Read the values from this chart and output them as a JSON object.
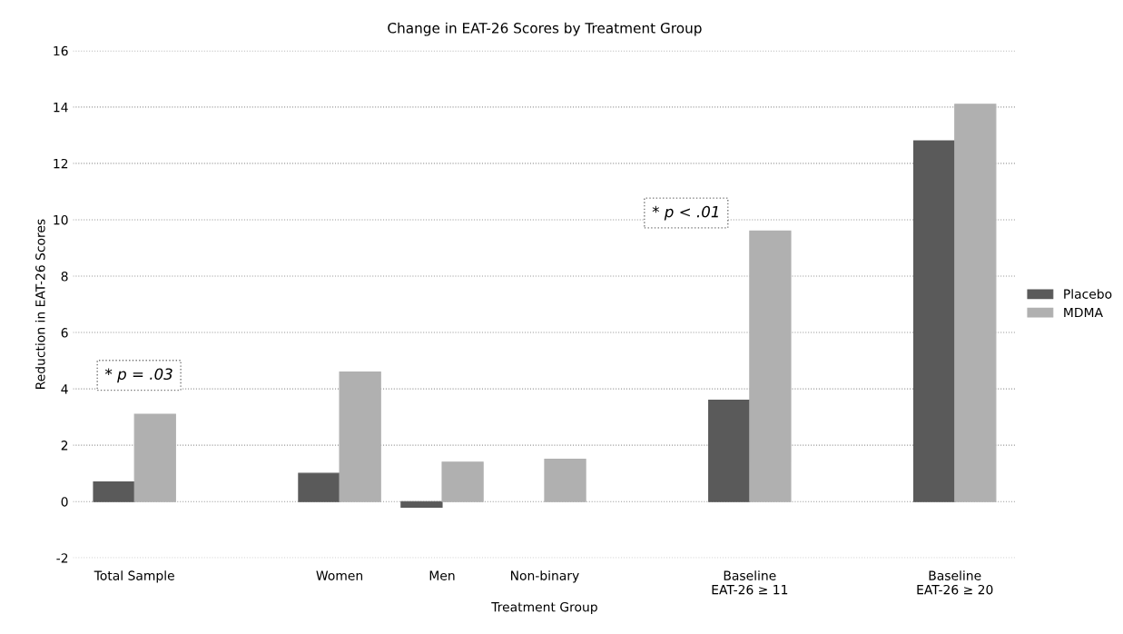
{
  "chart_data": {
    "type": "bar",
    "title": "Change in EAT-26 Scores by Treatment Group",
    "xlabel": "Treatment Group",
    "ylabel": "Reduction in EAT-26 Scores",
    "categories": [
      "Total Sample",
      null,
      "Women",
      "Men",
      "Non-binary",
      null,
      "Baseline\nEAT-26 ≥ 11",
      null,
      "Baseline\nEAT-26 ≥ 20"
    ],
    "series": [
      {
        "name": "Placebo",
        "color": "#5a5a5a",
        "values": [
          0.7,
          null,
          1.0,
          -0.2,
          null,
          null,
          3.6,
          null,
          12.8
        ]
      },
      {
        "name": "MDMA",
        "color": "#b0b0b0",
        "values": [
          3.1,
          null,
          4.6,
          1.4,
          1.5,
          null,
          9.6,
          null,
          14.1
        ]
      }
    ],
    "ylim": [
      -2,
      16
    ],
    "yticks": [
      {
        "value": -2,
        "label": "-2"
      },
      0,
      2,
      4,
      6,
      8,
      10,
      12,
      14,
      16
    ],
    "annotations": [
      "* p = .03",
      "* p < .01"
    ],
    "grid": "y",
    "legend": "right"
  }
}
